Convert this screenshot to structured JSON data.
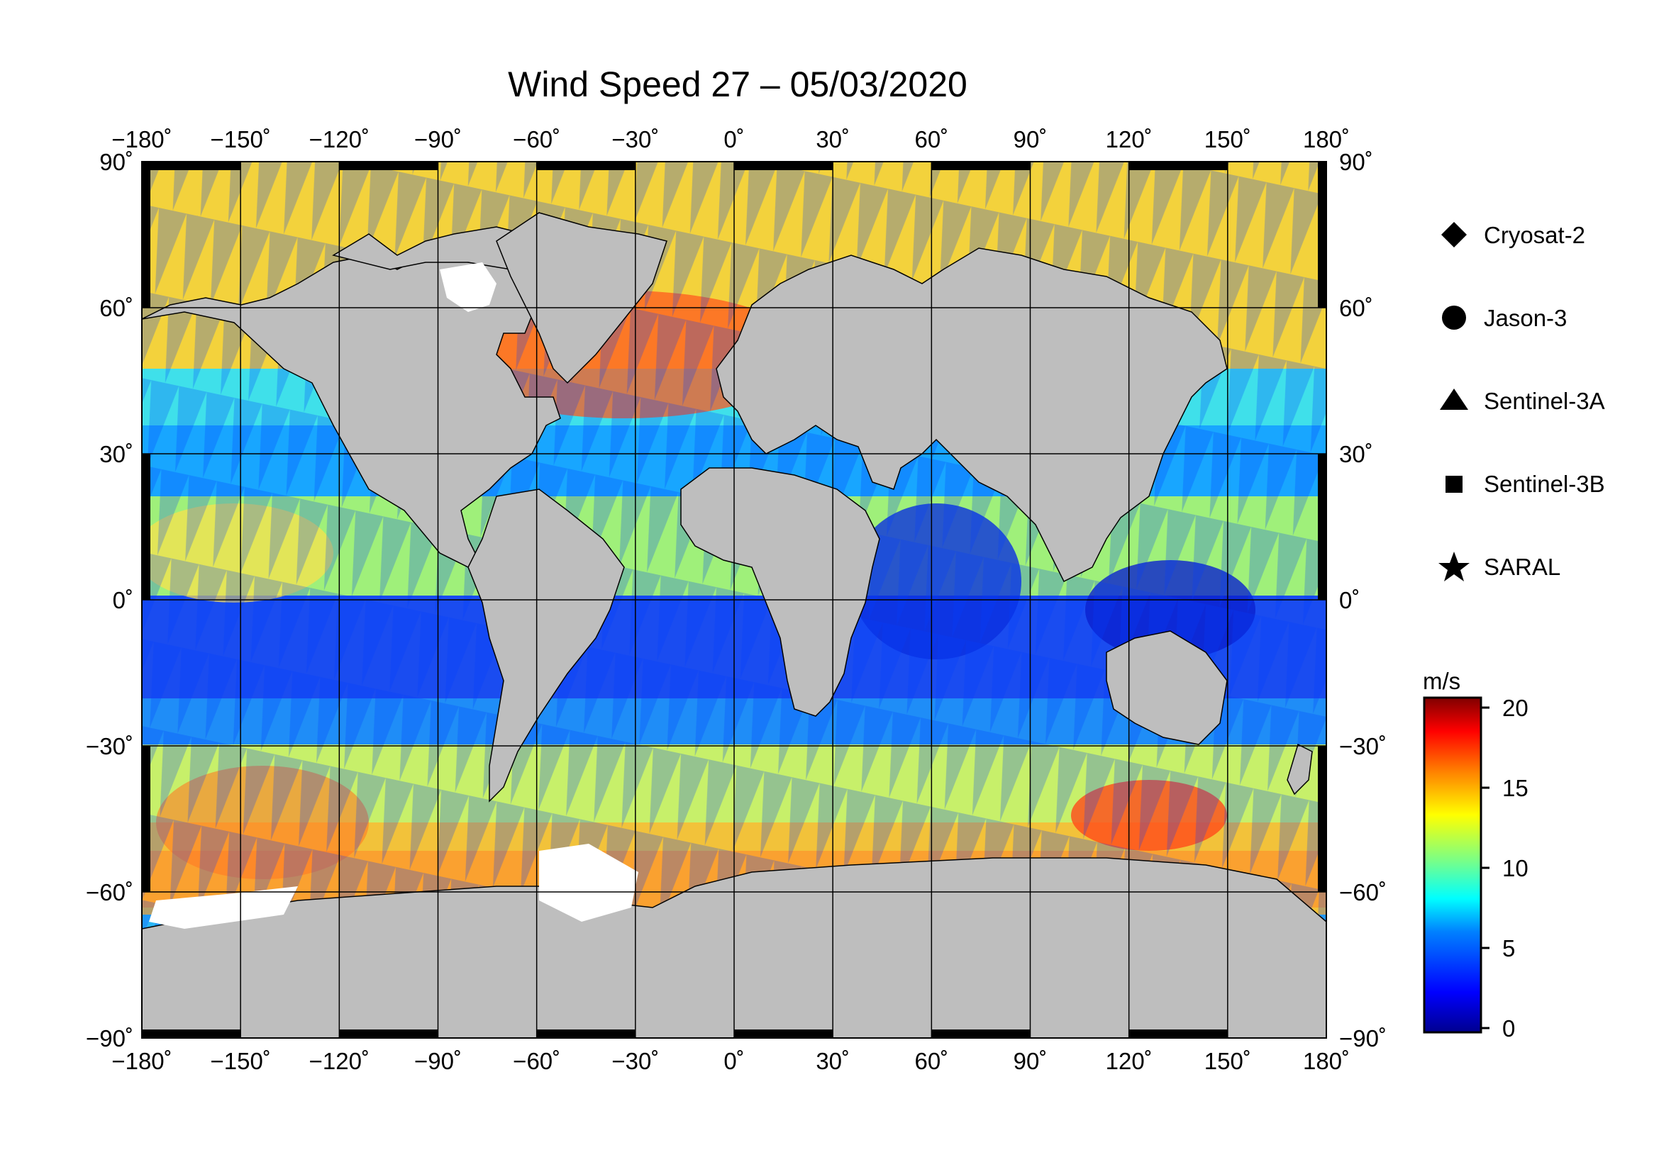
{
  "title": "Wind Speed 27 – 05/03/2020",
  "map": {
    "lon_ticks": [
      "−180˚",
      "−150˚",
      "−120˚",
      "−90˚",
      "−60˚",
      "−30˚",
      "0˚",
      "30˚",
      "60˚",
      "90˚",
      "120˚",
      "150˚",
      "180˚"
    ],
    "lat_ticks": [
      "90˚",
      "60˚",
      "30˚",
      "0˚",
      "−30˚",
      "−60˚",
      "−90˚"
    ],
    "lon_range": [
      -180,
      180
    ],
    "lat_range": [
      -90,
      90
    ],
    "gridlines": true,
    "land_color": "#bebebe",
    "ice_color": "#ffffff"
  },
  "legend": {
    "items": [
      {
        "name": "Cryosat-2",
        "symbol": "diamond-icon"
      },
      {
        "name": "Jason-3",
        "symbol": "circle-icon"
      },
      {
        "name": "Sentinel-3A",
        "symbol": "triangle-icon"
      },
      {
        "name": "Sentinel-3B",
        "symbol": "square-icon"
      },
      {
        "name": "SARAL",
        "symbol": "star-icon"
      }
    ]
  },
  "colorbar": {
    "unit": "m/s",
    "ticks": [
      "20",
      "15",
      "10",
      "5",
      "0"
    ],
    "range": [
      0,
      20
    ],
    "colors": [
      "#00008f",
      "#0000ff",
      "#0080ff",
      "#00ffff",
      "#80ff80",
      "#ffff00",
      "#ff8000",
      "#ff0000",
      "#800000"
    ]
  }
}
